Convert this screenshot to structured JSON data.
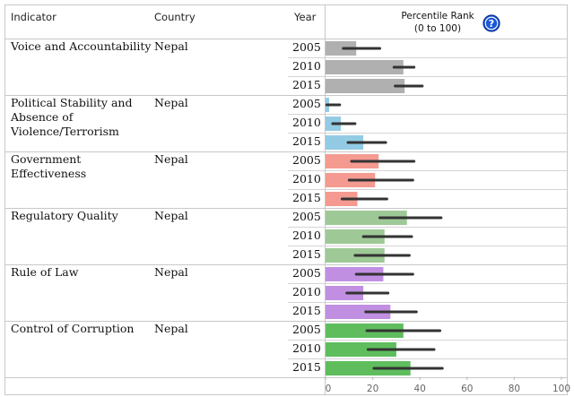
{
  "header": {
    "indicator": "Indicator",
    "country": "Country",
    "year": "Year",
    "rank_line1": "Percentile Rank",
    "rank_line2": "(0 to 100)",
    "help_glyph": "?"
  },
  "chart_data": {
    "type": "bar",
    "orientation": "horizontal",
    "xlim": [
      0,
      100
    ],
    "x_ticks": [
      "0",
      "20",
      "40",
      "60",
      "80",
      "100"
    ],
    "grid": false,
    "indicators": [
      {
        "name": "Voice and Accountability",
        "country": "Nepal",
        "color": "#b0b0b0",
        "rows": [
          {
            "year": "2005",
            "value": 13,
            "lo": 7.5,
            "hi": 23
          },
          {
            "year": "2010",
            "value": 33,
            "lo": 29,
            "hi": 37.5
          },
          {
            "year": "2015",
            "value": 33.5,
            "lo": 29.5,
            "hi": 41
          }
        ]
      },
      {
        "name": "Political Stability and Absence of Violence/Terrorism",
        "country": "Nepal",
        "color": "#93cbe4",
        "rows": [
          {
            "year": "2005",
            "value": 1.5,
            "lo": 0.5,
            "hi": 6
          },
          {
            "year": "2010",
            "value": 6.5,
            "lo": 3,
            "hi": 12.5
          },
          {
            "year": "2015",
            "value": 16,
            "lo": 9.5,
            "hi": 25.5
          }
        ]
      },
      {
        "name": "Government Effectiveness",
        "country": "Nepal",
        "color": "#f49a90",
        "rows": [
          {
            "year": "2005",
            "value": 22.5,
            "lo": 11,
            "hi": 37.5
          },
          {
            "year": "2010",
            "value": 21,
            "lo": 10,
            "hi": 37
          },
          {
            "year": "2015",
            "value": 13.5,
            "lo": 7,
            "hi": 26
          }
        ]
      },
      {
        "name": "Regulatory Quality",
        "country": "Nepal",
        "color": "#9ec996",
        "rows": [
          {
            "year": "2005",
            "value": 34.5,
            "lo": 23,
            "hi": 49
          },
          {
            "year": "2010",
            "value": 25,
            "lo": 16,
            "hi": 36.5
          },
          {
            "year": "2015",
            "value": 25,
            "lo": 12.5,
            "hi": 35.5
          }
        ]
      },
      {
        "name": "Rule of Law",
        "country": "Nepal",
        "color": "#c08fe2",
        "rows": [
          {
            "year": "2005",
            "value": 24.5,
            "lo": 13,
            "hi": 37
          },
          {
            "year": "2010",
            "value": 16,
            "lo": 9,
            "hi": 26.5
          },
          {
            "year": "2015",
            "value": 27.5,
            "lo": 17,
            "hi": 38.5
          }
        ]
      },
      {
        "name": "Control of Corruption",
        "country": "Nepal",
        "color": "#5fbd5e",
        "rows": [
          {
            "year": "2005",
            "value": 33,
            "lo": 17.5,
            "hi": 48.5
          },
          {
            "year": "2010",
            "value": 30,
            "lo": 18,
            "hi": 46
          },
          {
            "year": "2015",
            "value": 36,
            "lo": 20.5,
            "hi": 49.5
          }
        ]
      }
    ]
  }
}
